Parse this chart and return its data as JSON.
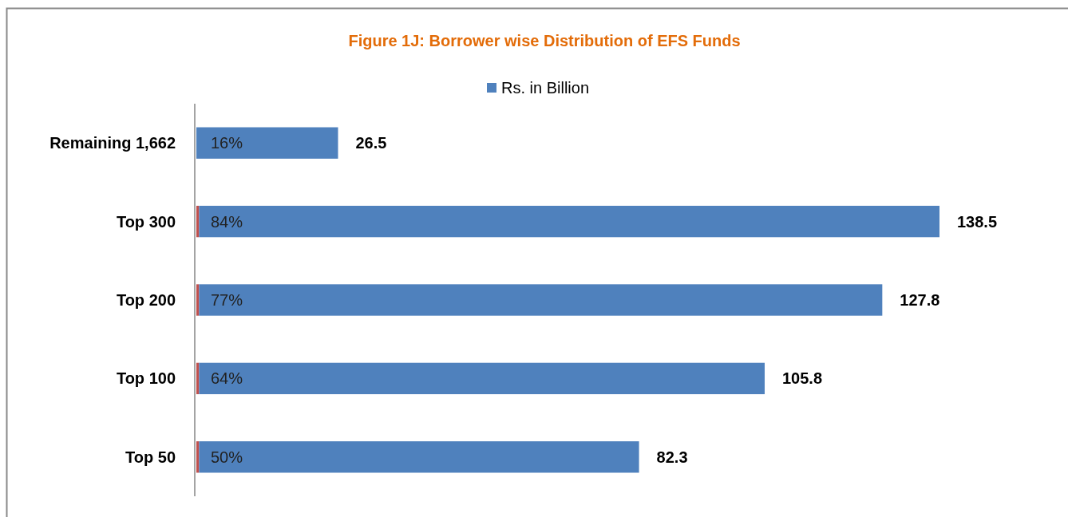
{
  "chart_data": {
    "type": "bar",
    "orientation": "horizontal",
    "stacked": true,
    "title": "Figure 1J: Borrower wise Distribution of EFS Funds",
    "categories": [
      "Remaining 1,662",
      "Top 300",
      "Top 200",
      "Top 100",
      "Top 50"
    ],
    "series": [
      {
        "color": "#c0504d",
        "values": [
          null,
          0.5,
          0.5,
          0.5,
          0.5
        ]
      },
      {
        "name": "Rs. in Billion",
        "color": "#4f81bd",
        "values": [
          26.5,
          138.5,
          127.8,
          105.8,
          82.3
        ],
        "value_labels": [
          "26.5",
          "138.5",
          "127.8",
          "105.8",
          "82.3"
        ]
      }
    ],
    "legend": "top",
    "annotations": [
      "16%",
      "84%",
      "77%",
      "64%",
      "50%"
    ]
  }
}
